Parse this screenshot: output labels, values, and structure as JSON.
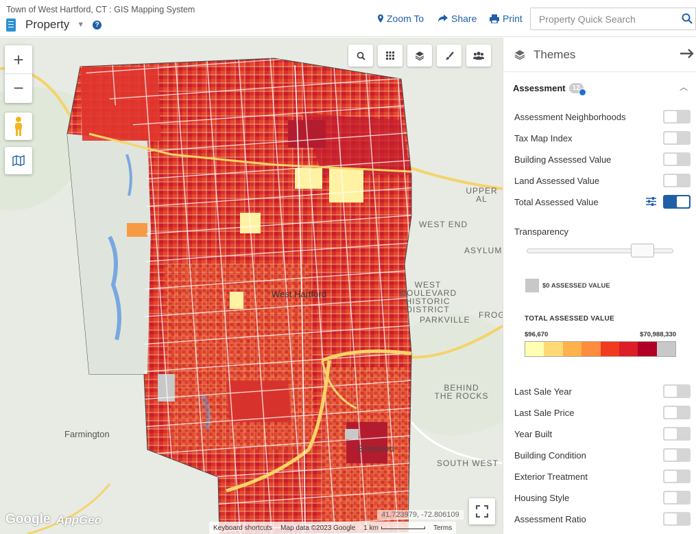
{
  "header": {
    "app_title": "Town of West Hartford, CT : GIS Mapping System",
    "layer_name": "Property",
    "zoom_to": "Zoom To",
    "share": "Share",
    "print": "Print",
    "search_placeholder": "Property Quick Search"
  },
  "map": {
    "places": {
      "farmington": "Farmington",
      "west_hartford": "West Hartford",
      "upper_al": "UPPER AL",
      "west_end": "WEST END",
      "asylum": "ASYLUM",
      "west_boulevard": "WEST BOULEVARD HISTORIC DISTRICT",
      "frog": "FROG",
      "parkville": "PARKVILLE",
      "behind_the_rocks": "BEHIND THE ROCKS",
      "south_west": "SOUTH WEST",
      "elmwood": "Elmwood"
    },
    "coords": "41.723979, -72.806109",
    "attribution": {
      "shortcuts": "Keyboard shortcuts",
      "map_data": "Map data ©2023 Google",
      "scale": "1 km",
      "terms": "Terms"
    },
    "logos": {
      "google": "Google",
      "appgeo": "AppGeo"
    }
  },
  "panel": {
    "title": "Themes",
    "section": {
      "title": "Assessment",
      "count": "12"
    },
    "layers_top": [
      {
        "label": "Assessment Neighborhoods",
        "on": false
      },
      {
        "label": "Tax Map Index",
        "on": false
      },
      {
        "label": "Building Assessed Value",
        "on": false
      },
      {
        "label": "Land Assessed Value",
        "on": false
      },
      {
        "label": "Total Assessed Value",
        "on": true
      }
    ],
    "transparency_label": "Transparency",
    "transparency_value": 0.79,
    "zero_label": "$0 ASSESSED VALUE",
    "legend": {
      "title": "TOTAL ASSESSED VALUE",
      "min": "$96,670",
      "max": "$70,988,330",
      "colors": [
        "#ffffb2",
        "#fed976",
        "#feb24c",
        "#fd8d3c",
        "#f03b20",
        "#dc1f26",
        "#b00026",
        "#c8c8c8"
      ]
    },
    "layers_bottom": [
      {
        "label": "Last Sale Year",
        "on": false
      },
      {
        "label": "Last Sale Price",
        "on": false
      },
      {
        "label": "Year Built",
        "on": false
      },
      {
        "label": "Building Condition",
        "on": false
      },
      {
        "label": "Exterior Treatment",
        "on": false
      },
      {
        "label": "Housing Style",
        "on": false
      },
      {
        "label": "Assessment Ratio",
        "on": false
      }
    ]
  }
}
